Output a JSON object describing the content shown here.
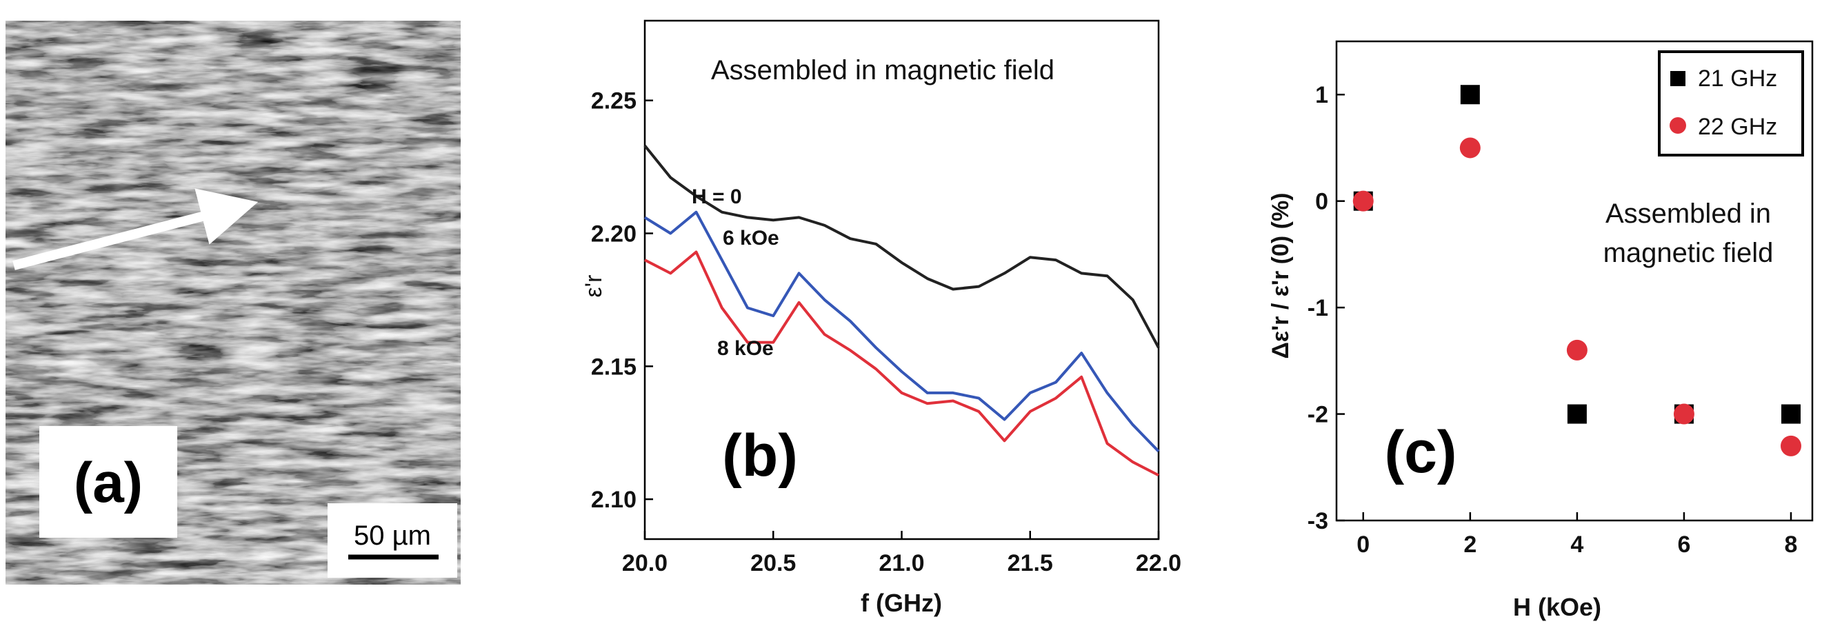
{
  "panel_a": {
    "label": "(a)",
    "scale_bar": "50 µm"
  },
  "chart_data": [
    {
      "panel": "(b)",
      "type": "line",
      "title": "Assembled in magnetic field",
      "xlabel": "f (GHz)",
      "ylabel": "ε'r",
      "xlim": [
        20.0,
        22.0
      ],
      "ylim": [
        2.085,
        2.28
      ],
      "xticks": [
        "20.0",
        "20.5",
        "21.0",
        "21.5",
        "22.0"
      ],
      "yticks": [
        "2.10",
        "2.15",
        "2.20",
        "2.25"
      ],
      "x": [
        20.0,
        20.1,
        20.2,
        20.3,
        20.4,
        20.5,
        20.6,
        20.7,
        20.8,
        20.9,
        21.0,
        21.1,
        21.2,
        21.3,
        21.4,
        21.5,
        21.6,
        21.7,
        21.8,
        21.9,
        22.0
      ],
      "series": [
        {
          "name": "H = 0",
          "color": "#222222",
          "values": [
            2.233,
            2.221,
            2.214,
            2.208,
            2.206,
            2.205,
            2.206,
            2.203,
            2.198,
            2.196,
            2.189,
            2.183,
            2.179,
            2.18,
            2.185,
            2.191,
            2.19,
            2.185,
            2.184,
            2.175,
            2.157
          ]
        },
        {
          "name": "6 kOe",
          "color": "#3557b7",
          "values": [
            2.206,
            2.2,
            2.208,
            2.19,
            2.172,
            2.169,
            2.185,
            2.175,
            2.167,
            2.157,
            2.148,
            2.14,
            2.14,
            2.138,
            2.13,
            2.14,
            2.144,
            2.155,
            2.14,
            2.128,
            2.118
          ]
        },
        {
          "name": "8 kOe",
          "color": "#e0303a",
          "values": [
            2.19,
            2.185,
            2.193,
            2.172,
            2.159,
            2.159,
            2.174,
            2.162,
            2.156,
            2.149,
            2.14,
            2.136,
            2.137,
            2.133,
            2.122,
            2.133,
            2.138,
            2.146,
            2.121,
            2.114,
            2.109
          ]
        }
      ],
      "annotations": [
        "H = 0",
        "6 kOe",
        "8 kOe"
      ]
    },
    {
      "panel": "(c)",
      "type": "scatter",
      "title": "Assembled in magnetic field",
      "annotation_lines": [
        "Assembled in",
        "magnetic field"
      ],
      "xlabel": "H (kOe)",
      "ylabel": "Δε'r / ε'r (0) (%)",
      "xlim": [
        -0.5,
        8.4
      ],
      "ylim": [
        -3,
        1.5
      ],
      "xticks": [
        "0",
        "2",
        "4",
        "6",
        "8"
      ],
      "yticks": [
        "1",
        "0",
        "-1",
        "-2",
        "-3"
      ],
      "legend_position": "top-right",
      "series": [
        {
          "name": "21 GHz",
          "marker": "square",
          "color": "#000000",
          "x": [
            0,
            2,
            4,
            6,
            8
          ],
          "y": [
            0,
            1,
            -2,
            -2,
            -2
          ]
        },
        {
          "name": "22 GHz",
          "marker": "circle",
          "color": "#e0303a",
          "x": [
            0,
            2,
            4,
            6,
            8
          ],
          "y": [
            0,
            0.5,
            -1.4,
            -2,
            -2.3
          ]
        }
      ]
    }
  ]
}
